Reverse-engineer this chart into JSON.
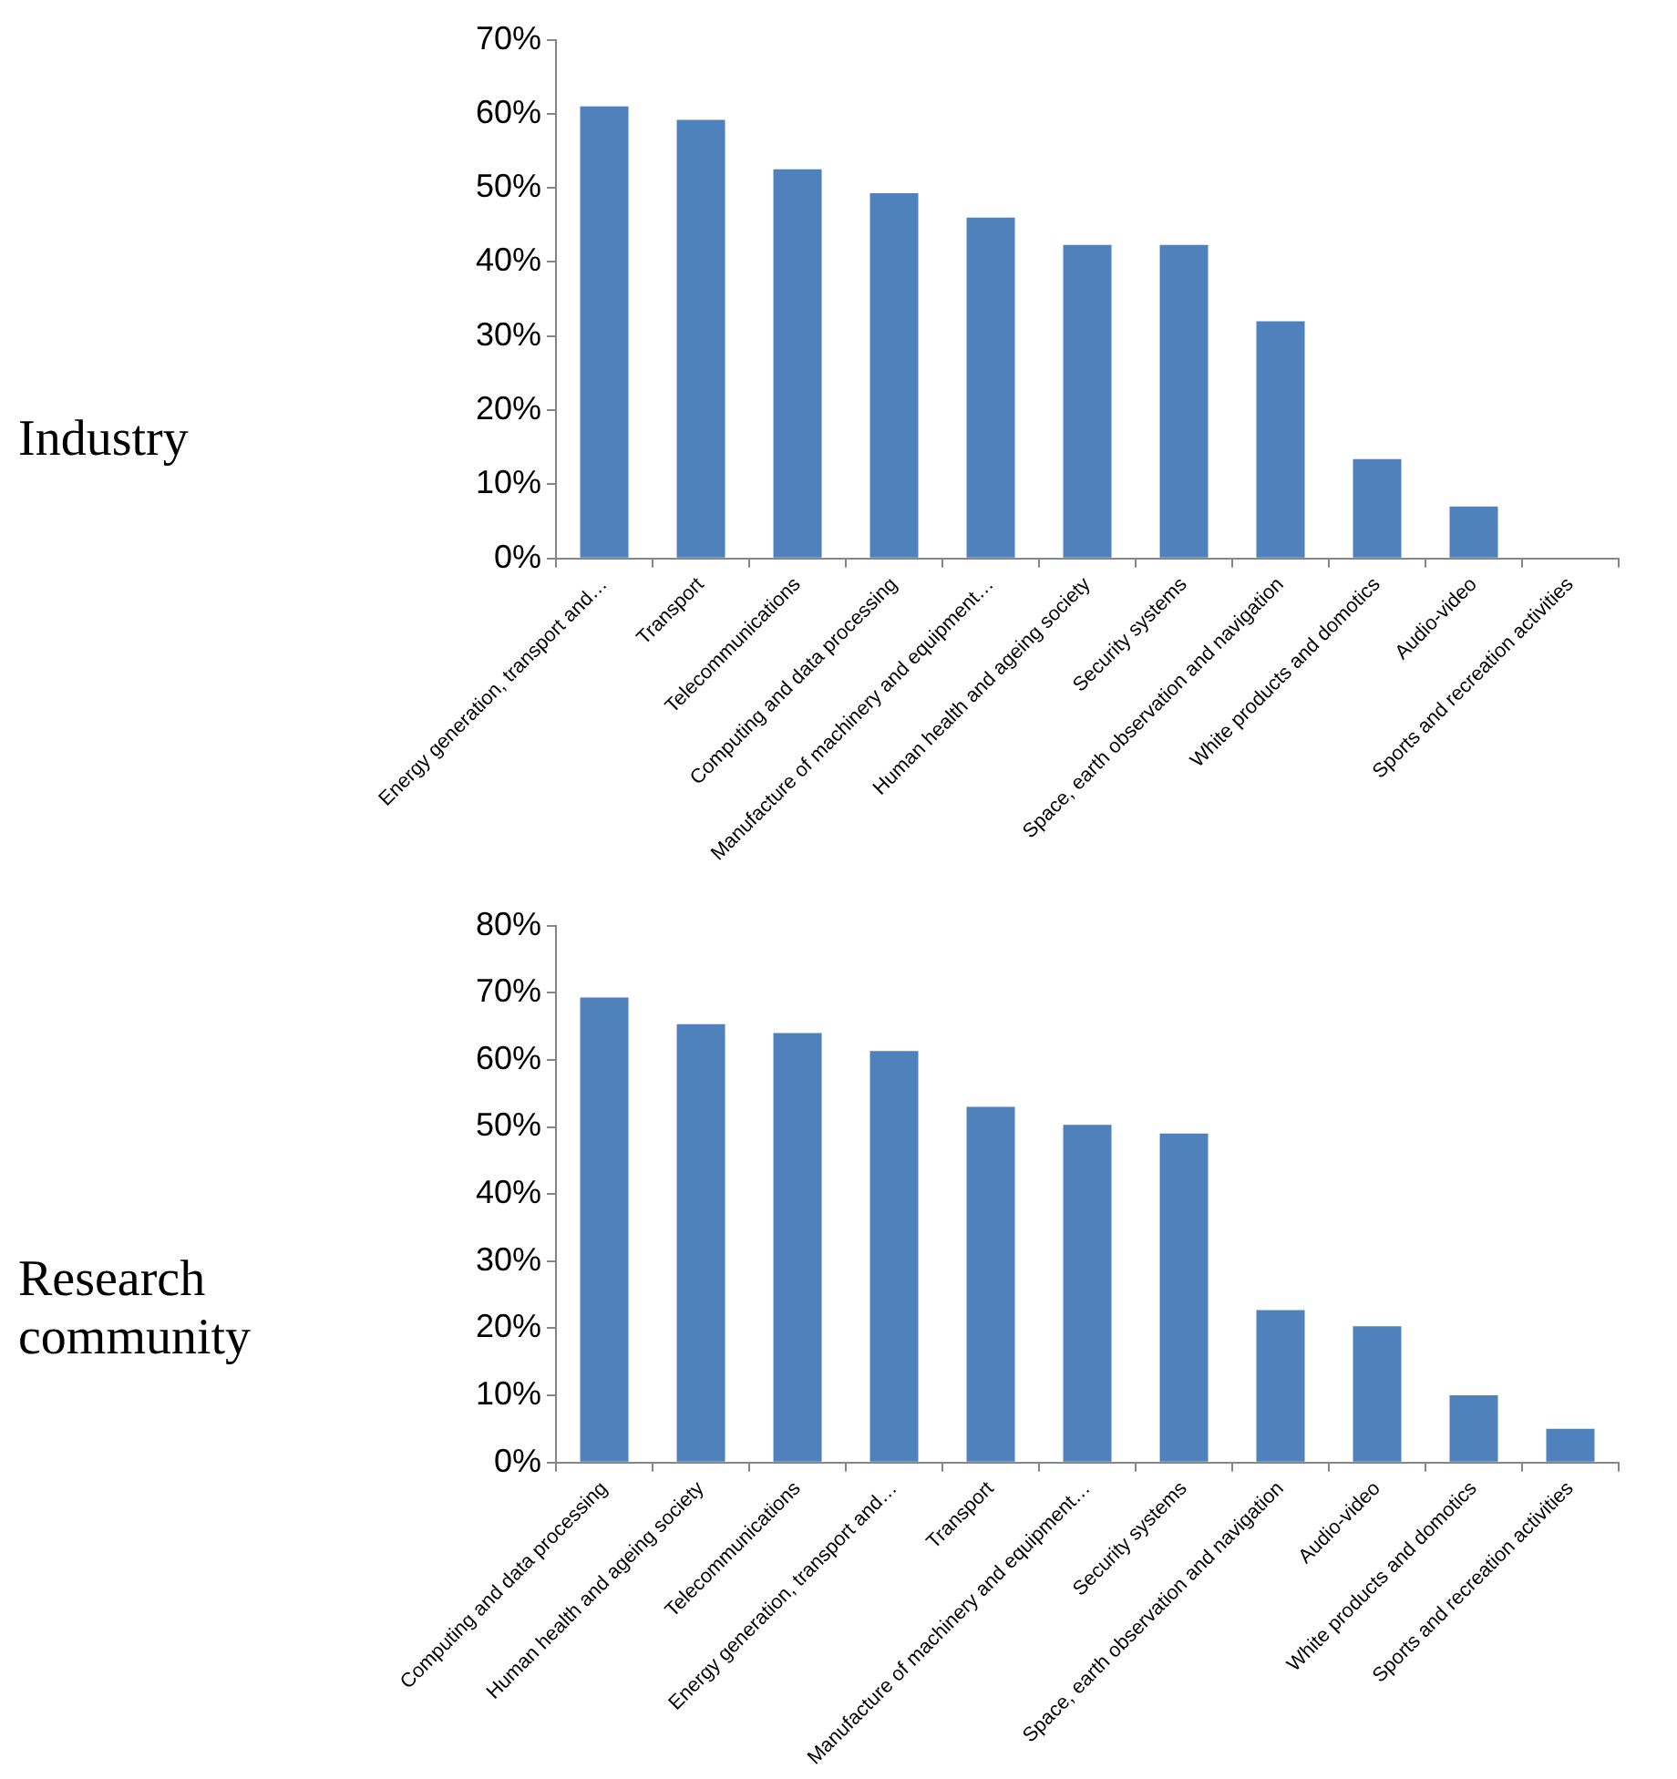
{
  "chart_data": [
    {
      "type": "bar",
      "title": "Industry",
      "categories": [
        "Energy generation, transport and…",
        "Transport",
        "Telecommunications",
        "Computing and data processing",
        "Manufacture of machinery and equipment…",
        "Human health and ageing society",
        "Security systems",
        "Space, earth observation and navigation",
        "White products and domotics",
        "Audio-video",
        "Sports and recreation activities"
      ],
      "values": [
        61,
        59.2,
        52.5,
        49.3,
        46,
        42.3,
        42.3,
        32,
        13.4,
        7,
        0
      ],
      "color": "#4f81bd",
      "ylim": [
        0,
        70
      ],
      "yticks": [
        {
          "value": 0,
          "label": "0%"
        },
        {
          "value": 10,
          "label": "10%"
        },
        {
          "value": 20,
          "label": "20%"
        },
        {
          "value": 30,
          "label": "30%"
        },
        {
          "value": 40,
          "label": "40%"
        },
        {
          "value": 50,
          "label": "50%"
        },
        {
          "value": 60,
          "label": "60%"
        },
        {
          "value": 70,
          "label": "70%"
        }
      ]
    },
    {
      "type": "bar",
      "title": "Research community",
      "categories": [
        "Computing and data processing",
        "Human health and ageing society",
        "Telecommunications",
        "Energy generation, transport and…",
        "Transport",
        "Manufacture of machinery and equipment…",
        "Security systems",
        "Space, earth observation and navigation",
        "Audio-video",
        "White products and domotics",
        "Sports and recreation activities"
      ],
      "values": [
        69.3,
        65.3,
        64,
        61.3,
        53,
        50.3,
        49,
        22.7,
        20.3,
        10,
        5
      ],
      "color": "#4f81bd",
      "ylim": [
        0,
        80
      ],
      "yticks": [
        {
          "value": 0,
          "label": "0%"
        },
        {
          "value": 10,
          "label": "10%"
        },
        {
          "value": 20,
          "label": "20%"
        },
        {
          "value": 30,
          "label": "30%"
        },
        {
          "value": 40,
          "label": "40%"
        },
        {
          "value": 50,
          "label": "50%"
        },
        {
          "value": 60,
          "label": "60%"
        },
        {
          "value": 70,
          "label": "70%"
        },
        {
          "value": 80,
          "label": "80%"
        }
      ]
    }
  ]
}
